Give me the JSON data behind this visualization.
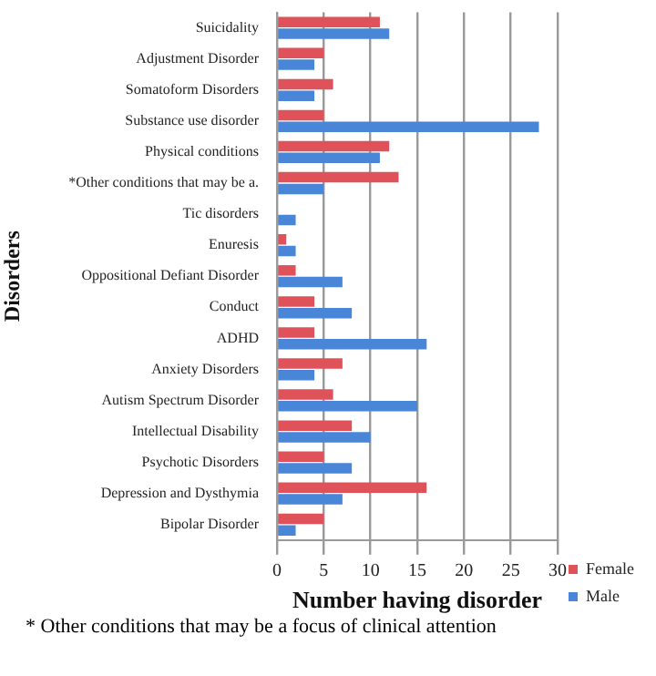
{
  "chart_data": {
    "type": "bar",
    "orientation": "horizontal",
    "xlabel": "Number having disorder",
    "ylabel": "Disorders",
    "categories": [
      "Suicidality",
      "Adjustment Disorder",
      "Somatoform Disorders",
      "Substance use disorder",
      "Physical conditions",
      "*Other conditions that may be a.",
      "Tic disorders",
      "Enuresis",
      "Oppositional Defiant Disorder",
      "Conduct",
      "ADHD",
      "Anxiety Disorders",
      "Autism Spectrum Disorder",
      "Intellectual Disability",
      "Psychotic Disorders",
      "Depression and Dysthymia",
      "Bipolar Disorder"
    ],
    "series": [
      {
        "name": "Female",
        "color": "#e0525a",
        "values": [
          11,
          5,
          6,
          5,
          12,
          13,
          0,
          1,
          2,
          4,
          4,
          7,
          6,
          8,
          5,
          16,
          5
        ]
      },
      {
        "name": "Male",
        "color": "#4a86d8",
        "values": [
          12,
          4,
          4,
          28,
          11,
          5,
          2,
          2,
          7,
          8,
          16,
          4,
          15,
          10,
          8,
          7,
          2
        ]
      }
    ],
    "xlim": [
      0,
      30
    ],
    "xticks": [
      0,
      5,
      10,
      15,
      20,
      25,
      30
    ],
    "grid": "x",
    "legend": "right",
    "annotations": [
      "* Other conditions that may be a focus of clinical attention"
    ]
  }
}
